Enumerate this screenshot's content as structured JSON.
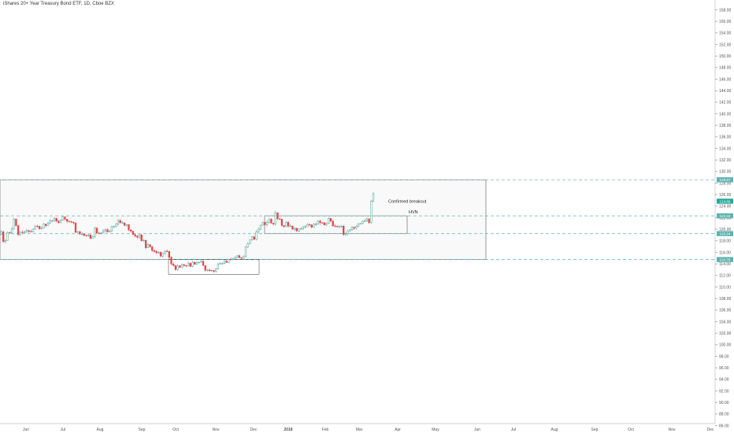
{
  "chart_data": {
    "type": "candlestick",
    "title": "iShares 20+ Year Treasury Bond ETF, 1D, Cboe BZX",
    "y_axis": {
      "ticks": [
        86,
        88,
        90,
        92,
        94,
        96,
        98,
        100,
        102,
        104,
        106,
        108,
        110,
        112,
        114,
        116,
        118,
        120,
        122,
        124,
        126,
        128,
        130,
        132,
        134,
        136,
        138,
        140,
        142,
        144,
        146,
        148,
        150,
        152,
        154,
        156,
        158
      ],
      "range": [
        85,
        159
      ],
      "side": "right"
    },
    "x_axis": {
      "labels": [
        "Jun",
        "Jul",
        "Aug",
        "Sep",
        "Oct",
        "Nov",
        "Dec",
        "2018",
        "Feb",
        "Mar",
        "Apr",
        "May",
        "Jun",
        "Jul",
        "Aug",
        "Sep",
        "Oct",
        "Nov",
        "Dec"
      ]
    },
    "price_badges": [
      {
        "value": "128.57",
        "color": "#5db3b0"
      },
      {
        "value": "124.86",
        "color": "#26a69a"
      },
      {
        "value": "122.32",
        "color": "#5db3b0"
      },
      {
        "value": "119.24",
        "color": "#5db3b0"
      },
      {
        "value": "114.75",
        "color": "#5db3b0"
      }
    ],
    "horizontal_levels": [
      128.57,
      122.32,
      119.24,
      114.75
    ],
    "annotations": {
      "breakout_label": "Confirmed breakout",
      "hvn_label": "HVN"
    },
    "candles": {
      "open": [
        119.1,
        119.55,
        117.88,
        118.06,
        119.42,
        119.35,
        120.04,
        121.76,
        120.62,
        119.08,
        119.49,
        119.44,
        119.59,
        119.77,
        119.61,
        119.56,
        120.03,
        120.53,
        120.51,
        120.1,
        120.18,
        120.88,
        120.64,
        121.09,
        121.44,
        121.45,
        121.88,
        121.41,
        121.14,
        121.57,
        122.14,
        121.73,
        121.39,
        121.31,
        121.21,
        121.11,
        119.48,
        119.56,
        119.19,
        119.2,
        118.94,
        118.87,
        119.03,
        118.41,
        118.74,
        120.2,
        119.36,
        119.29,
        119.35,
        119.72,
        119.95,
        119.53,
        119.67,
        120.46,
        120.48,
        120.88,
        121.52,
        121.11,
        121.12,
        120.69,
        120.8,
        119.86,
        119.65,
        119.09,
        118.82,
        118.63,
        119.03,
        118.03,
        118.1,
        116.8,
        117.33,
        116.95,
        116.34,
        116.16,
        115.92,
        116.04,
        115.36,
        115.87,
        116.2,
        116.18,
        115.12,
        113.99,
        113.7,
        113.02,
        113.66,
        113.4,
        113.87,
        113.71,
        113.65,
        114.1,
        113.58,
        114.27,
        113.95,
        114.25,
        114.27,
        114.47,
        113.73,
        112.9,
        112.95,
        112.79,
        112.87,
        112.68,
        113.16,
        113.93,
        114.06,
        114.08,
        114.47,
        114.25,
        114.79,
        114.76,
        114.86,
        115.15,
        115.43,
        115.08,
        114.98,
        115.32,
        116.91,
        117.49,
        118.2,
        118.69,
        118.27,
        119.54,
        120.0,
        120.71,
        121.19,
        120.79,
        121.22,
        121.74,
        121.06,
        120.91,
        122.86,
        121.82,
        121.74,
        120.66,
        120.46,
        121.19,
        120.56,
        120.56,
        120.0,
        120.17,
        119.71,
        120.05,
        120.07,
        120.42,
        120.45,
        120.82,
        120.76,
        120.34,
        120.84,
        120.88,
        121.42,
        121.14,
        121.13,
        120.74,
        121.04,
        121.9,
        121.42,
        120.57,
        120.53,
        120.45,
        120.46,
        120.54,
        119.09,
        119.22,
        119.72,
        119.92,
        120.33,
        120.18,
        120.54,
        120.94,
        121.0,
        121.37,
        121.46,
        121.81,
        121.13,
        124.85
      ],
      "close": [
        119.55,
        117.88,
        118.06,
        119.42,
        119.35,
        120.04,
        121.76,
        120.62,
        119.08,
        119.49,
        119.44,
        119.59,
        119.77,
        119.61,
        119.56,
        120.03,
        120.53,
        120.51,
        120.1,
        120.18,
        120.88,
        120.64,
        121.09,
        121.44,
        121.45,
        121.88,
        121.41,
        121.14,
        121.57,
        122.14,
        121.73,
        121.39,
        121.31,
        121.21,
        121.11,
        119.48,
        119.56,
        119.19,
        119.2,
        118.94,
        118.87,
        119.03,
        118.41,
        118.74,
        120.2,
        119.36,
        119.29,
        119.35,
        119.72,
        119.95,
        119.53,
        119.67,
        120.46,
        120.48,
        120.88,
        121.52,
        121.11,
        121.12,
        120.69,
        120.8,
        119.86,
        119.65,
        119.09,
        118.82,
        118.63,
        119.03,
        118.03,
        118.1,
        116.8,
        117.33,
        116.95,
        116.34,
        116.16,
        115.92,
        116.04,
        115.36,
        115.87,
        116.2,
        116.18,
        115.12,
        113.99,
        113.7,
        113.02,
        113.66,
        113.4,
        113.87,
        113.71,
        113.65,
        114.1,
        113.58,
        114.27,
        113.95,
        114.25,
        114.27,
        114.47,
        113.73,
        112.9,
        112.95,
        112.79,
        112.87,
        112.68,
        113.16,
        113.93,
        114.06,
        114.08,
        114.47,
        114.25,
        114.79,
        114.76,
        114.86,
        115.15,
        115.43,
        115.08,
        114.98,
        115.32,
        116.91,
        117.49,
        118.2,
        118.69,
        118.27,
        119.54,
        120.0,
        120.71,
        121.19,
        120.79,
        121.22,
        121.74,
        121.06,
        120.91,
        122.86,
        121.82,
        121.74,
        120.66,
        120.46,
        121.19,
        120.56,
        120.56,
        120.0,
        120.17,
        119.71,
        120.05,
        120.07,
        120.42,
        120.45,
        120.82,
        120.76,
        120.34,
        120.84,
        120.88,
        121.42,
        121.14,
        121.13,
        120.74,
        121.04,
        121.9,
        121.42,
        120.57,
        120.53,
        120.45,
        120.46,
        120.54,
        119.09,
        119.22,
        119.72,
        119.92,
        120.33,
        120.18,
        120.54,
        120.94,
        121.0,
        121.37,
        121.46,
        121.81,
        121.13,
        124.85,
        126.15
      ],
      "high": [
        119.85,
        119.79,
        118.29,
        119.64,
        119.61,
        120.38,
        121.99,
        121.83,
        120.82,
        119.68,
        119.81,
        119.75,
        120.07,
        119.9,
        119.92,
        120.13,
        120.74,
        120.78,
        120.64,
        120.53,
        121.13,
        120.97,
        121.23,
        121.75,
        121.73,
        122.16,
        121.99,
        121.62,
        121.74,
        122.35,
        122.29,
        121.75,
        121.54,
        121.5,
        121.39,
        121.19,
        119.69,
        119.79,
        119.53,
        119.25,
        119.08,
        119.22,
        119.08,
        119.0,
        120.42,
        120.36,
        119.54,
        119.49,
        120.0,
        120.13,
        120.15,
        119.85,
        120.64,
        120.61,
        121.07,
        121.8,
        121.72,
        121.4,
        121.15,
        120.87,
        120.9,
        120.06,
        119.76,
        119.32,
        118.94,
        119.2,
        119.19,
        118.32,
        118.17,
        117.57,
        117.45,
        117.16,
        116.44,
        116.4,
        116.23,
        116.14,
        115.98,
        116.35,
        116.49,
        116.19,
        115.37,
        114.26,
        113.77,
        113.94,
        113.85,
        114.1,
        114.02,
        113.85,
        114.42,
        114.24,
        114.58,
        114.49,
        114.5,
        114.44,
        114.77,
        114.63,
        113.8,
        113.18,
        113.18,
        113.07,
        112.92,
        113.31,
        114.22,
        114.31,
        114.25,
        114.68,
        114.7,
        114.91,
        115.07,
        115.01,
        115.27,
        115.46,
        115.63,
        115.19,
        115.45,
        117.13,
        117.76,
        118.27,
        118.8,
        118.91,
        119.86,
        120.3,
        120.77,
        121.32,
        121.34,
        121.49,
        121.9,
        121.92,
        121.04,
        123.21,
        122.95,
        121.99,
        120.94,
        120.7,
        121.44,
        121.43,
        120.96,
        120.64,
        120.38,
        120.28,
        120.18,
        120.35,
        120.51,
        120.72,
        121.07,
        121.02,
        120.87,
        121.1,
        121.14,
        121.53,
        121.7,
        121.26,
        121.26,
        121.17,
        122.06,
        121.91,
        121.66,
        120.87,
        120.65,
        120.77,
        120.7,
        120.73,
        119.47,
        119.95,
        120.04,
        120.54,
        120.5,
        120.73,
        121.11,
        121.08,
        121.55,
        121.8,
        121.99,
        121.9,
        125.08,
        126.41
      ],
      "low": [
        118.93,
        117.64,
        117.54,
        118.03,
        119.13,
        119.32,
        119.86,
        120.46,
        118.81,
        118.87,
        119.19,
        119.32,
        119.36,
        119.41,
        119.48,
        119.44,
        119.9,
        120.26,
        119.86,
        119.96,
        120.09,
        120.34,
        120.61,
        120.83,
        121.26,
        121.29,
        121.17,
        120.95,
        121.02,
        121.47,
        121.51,
        121.07,
        121.16,
        121.05,
        120.84,
        119.33,
        119.39,
        118.98,
        118.92,
        118.74,
        118.67,
        118.69,
        118.27,
        118.33,
        118.47,
        119.16,
        119.12,
        119.06,
        119.25,
        119.57,
        119.44,
        119.44,
        119.52,
        120.15,
        120.3,
        120.64,
        121.07,
        120.94,
        120.56,
        120.41,
        119.67,
        119.38,
        118.95,
        118.59,
        118.36,
        118.36,
        117.85,
        117.8,
        116.53,
        116.77,
        116.81,
        116.07,
        115.94,
        115.73,
        115.73,
        115.15,
        115.11,
        115.56,
        116.08,
        114.8,
        113.73,
        113.57,
        112.78,
        112.8,
        113.34,
        113.29,
        113.49,
        113.35,
        113.51,
        113.48,
        113.41,
        113.84,
        113.9,
        113.98,
        114.2,
        113.62,
        112.62,
        112.67,
        112.71,
        112.65,
        112.47,
        112.47,
        113.07,
        113.88,
        113.89,
        113.91,
        114.17,
        114.11,
        114.62,
        114.59,
        114.77,
        114.98,
        115.03,
        114.74,
        114.88,
        115.15,
        116.76,
        117.37,
        118.03,
        118.14,
        118.04,
        119.28,
        119.85,
        120.57,
        120.59,
        120.48,
        121.01,
        120.96,
        120.64,
        120.63,
        121.5,
        121.55,
        120.46,
        120.29,
        120.37,
        120.25,
        120.34,
        119.92,
        119.73,
        119.53,
        119.45,
        119.97,
        119.85,
        120.18,
        120.39,
        120.55,
        120.23,
        120.25,
        120.59,
        120.77,
        120.81,
        120.98,
        120.7,
        120.51,
        120.87,
        121.15,
        120.48,
        120.29,
        120.29,
        120.15,
        120.21,
        118.87,
        118.84,
        118.92,
        119.54,
        119.73,
        119.91,
        119.93,
        120.41,
        120.86,
        120.82,
        121.23,
        121.29,
        120.94,
        120.96,
        124.68
      ]
    }
  }
}
